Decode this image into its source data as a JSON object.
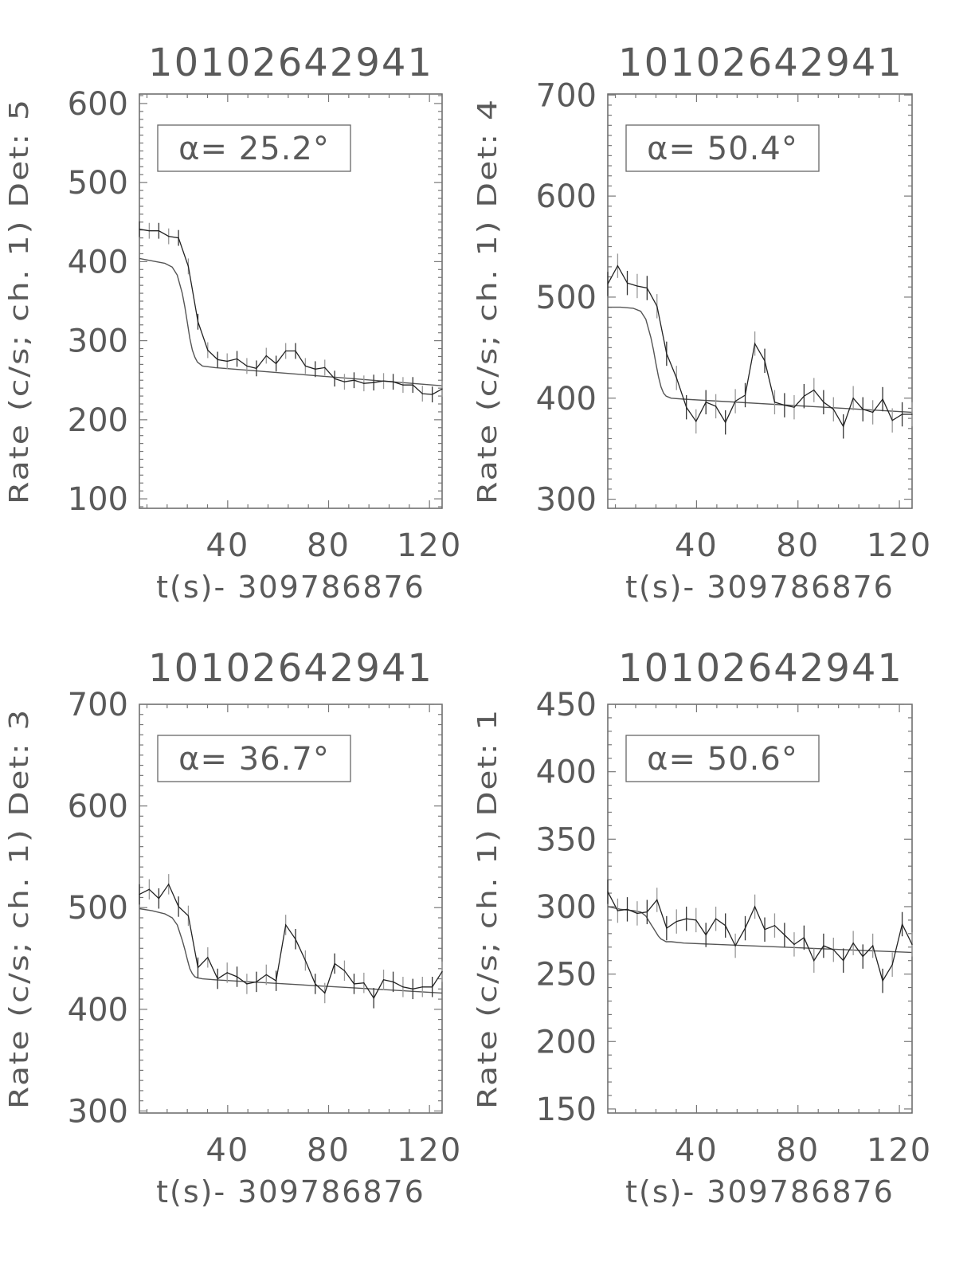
{
  "chart_data": [
    {
      "type": "line",
      "title": "10102642941",
      "ylabel": "Rate (c/s; ch. 1) Det: 5",
      "xlabel": "t(s)- 309786876",
      "annotation": "α= 25.2°",
      "xlim": [
        5,
        125
      ],
      "ylim": [
        88,
        612
      ],
      "xticks": [
        40,
        80,
        120
      ],
      "xtick_labels": [
        "40",
        "80",
        "120"
      ],
      "yticks": [
        100,
        200,
        300,
        400,
        500,
        600
      ],
      "ytick_labels": [
        "100",
        "200",
        "300",
        "400",
        "500",
        "600"
      ],
      "y_minor_step": 10,
      "x_minor_step": 8,
      "t": [
        5.0,
        8.9,
        12.7,
        16.6,
        20.5,
        24.4,
        28.2,
        32.1,
        36.0,
        39.8,
        43.7,
        47.6,
        51.4,
        55.3,
        59.2,
        63.0,
        66.9,
        70.8,
        74.7,
        78.5,
        82.4,
        86.3,
        90.1,
        94.0,
        97.9,
        101.8,
        105.6,
        109.5,
        113.4,
        117.2,
        121.1,
        125.0
      ],
      "rate": [
        441,
        439,
        439,
        432,
        430,
        394,
        324,
        288,
        276,
        274,
        277,
        268,
        265,
        281,
        271,
        287,
        287,
        268,
        264,
        266,
        252,
        248,
        250,
        246,
        247,
        249,
        248,
        244,
        244,
        233,
        232,
        239
      ],
      "error": 10,
      "fit": {
        "t": [
          5,
          10,
          15,
          18,
          20,
          22,
          23,
          24,
          25,
          26,
          27,
          28,
          30,
          35,
          125
        ],
        "rate": [
          404,
          401,
          398,
          393,
          383,
          360,
          343,
          323,
          303,
          288,
          279,
          273,
          268,
          266,
          243
        ]
      }
    },
    {
      "type": "line",
      "title": "10102642941",
      "ylabel": "Rate (c/s; ch. 1) Det: 4",
      "xlabel": "t(s)- 309786876",
      "annotation": "α= 50.4°",
      "xlim": [
        5,
        125
      ],
      "ylim": [
        291,
        701
      ],
      "xticks": [
        40,
        80,
        120
      ],
      "xtick_labels": [
        "40",
        "80",
        "120"
      ],
      "yticks": [
        300,
        400,
        500,
        600,
        700
      ],
      "ytick_labels": [
        "300",
        "400",
        "500",
        "600",
        "700"
      ],
      "y_minor_step": 10,
      "x_minor_step": 8,
      "t": [
        5.0,
        8.9,
        12.7,
        16.6,
        20.5,
        24.4,
        28.2,
        32.1,
        36.0,
        39.8,
        43.7,
        47.6,
        51.4,
        55.3,
        59.2,
        63.0,
        66.9,
        70.8,
        74.7,
        78.5,
        82.4,
        86.3,
        90.1,
        94.0,
        97.9,
        101.8,
        105.6,
        109.5,
        113.4,
        117.2,
        121.1,
        125.0
      ],
      "rate": [
        513,
        531,
        514,
        511,
        509,
        491,
        444,
        420,
        391,
        377,
        396,
        392,
        376,
        397,
        403,
        454,
        437,
        396,
        393,
        391,
        402,
        408,
        396,
        389,
        372,
        400,
        389,
        386,
        399,
        378,
        384,
        384
      ],
      "error": 12,
      "fit": {
        "t": [
          5,
          10,
          15,
          18,
          20,
          22,
          23,
          24,
          25,
          26,
          27,
          28,
          30,
          35,
          125
        ],
        "rate": [
          490,
          490,
          489,
          486,
          478,
          460,
          448,
          434,
          421,
          411,
          405,
          402,
          400,
          399,
          386
        ]
      }
    },
    {
      "type": "line",
      "title": "10102642941",
      "ylabel": "Rate (c/s; ch. 1) Det: 3",
      "xlabel": "t(s)- 309786876",
      "annotation": "α= 36.7°",
      "xlim": [
        5,
        125
      ],
      "ylim": [
        298,
        700
      ],
      "xticks": [
        40,
        80,
        120
      ],
      "xtick_labels": [
        "40",
        "80",
        "120"
      ],
      "yticks": [
        300,
        400,
        500,
        600,
        700
      ],
      "ytick_labels": [
        "300",
        "400",
        "500",
        "600",
        "700"
      ],
      "y_minor_step": 10,
      "x_minor_step": 8,
      "t": [
        5.0,
        8.9,
        12.7,
        16.6,
        20.5,
        24.4,
        28.2,
        32.1,
        36.0,
        39.8,
        43.7,
        47.6,
        51.4,
        55.3,
        59.2,
        63.0,
        66.9,
        70.8,
        74.7,
        78.5,
        82.4,
        86.3,
        90.1,
        94.0,
        97.9,
        101.8,
        105.6,
        109.5,
        113.4,
        117.2,
        121.1,
        125.0
      ],
      "rate": [
        513,
        518,
        509,
        523,
        501,
        492,
        441,
        451,
        430,
        436,
        432,
        425,
        427,
        434,
        428,
        483,
        469,
        448,
        425,
        416,
        445,
        438,
        425,
        426,
        411,
        429,
        427,
        422,
        420,
        422,
        422,
        437
      ],
      "error": 10,
      "fit": {
        "t": [
          5,
          10,
          15,
          18,
          20,
          22,
          23,
          24,
          25,
          26,
          27,
          28,
          30,
          35,
          125
        ],
        "rate": [
          499,
          497,
          494,
          490,
          483,
          468,
          459,
          449,
          440,
          435,
          432,
          431,
          430,
          429,
          416
        ]
      }
    },
    {
      "type": "line",
      "title": "10102642941",
      "ylabel": "Rate (c/s; ch. 1) Det: 1",
      "xlabel": "t(s)- 309786876",
      "annotation": "α= 50.6°",
      "xlim": [
        5,
        125
      ],
      "ylim": [
        147,
        450
      ],
      "xticks": [
        40,
        80,
        120
      ],
      "xtick_labels": [
        "40",
        "80",
        "120"
      ],
      "yticks": [
        150,
        200,
        250,
        300,
        350,
        400,
        450
      ],
      "ytick_labels": [
        "150",
        "200",
        "250",
        "300",
        "350",
        "400",
        "450"
      ],
      "y_minor_step": 10,
      "x_minor_step": 8,
      "t": [
        5.0,
        8.9,
        12.7,
        16.6,
        20.5,
        24.4,
        28.2,
        32.1,
        36.0,
        39.8,
        43.7,
        47.6,
        51.4,
        55.3,
        59.2,
        63.0,
        66.9,
        70.8,
        74.7,
        78.5,
        82.4,
        86.3,
        90.1,
        94.0,
        97.9,
        101.8,
        105.6,
        109.5,
        113.4,
        117.2,
        121.1,
        125.0
      ],
      "rate": [
        311,
        297,
        298,
        295,
        296,
        305,
        284,
        289,
        291,
        290,
        279,
        291,
        286,
        271,
        284,
        300,
        283,
        286,
        279,
        272,
        277,
        260,
        271,
        268,
        260,
        273,
        263,
        271,
        245,
        257,
        287,
        272
      ],
      "error": 9,
      "fit": {
        "t": [
          5,
          10,
          15,
          18,
          20,
          22,
          23,
          24,
          25,
          26,
          27,
          28,
          30,
          35,
          125
        ],
        "rate": [
          300,
          298,
          297,
          296,
          293,
          287,
          284,
          281,
          278,
          276,
          275,
          274,
          274,
          273,
          266
        ]
      }
    }
  ]
}
